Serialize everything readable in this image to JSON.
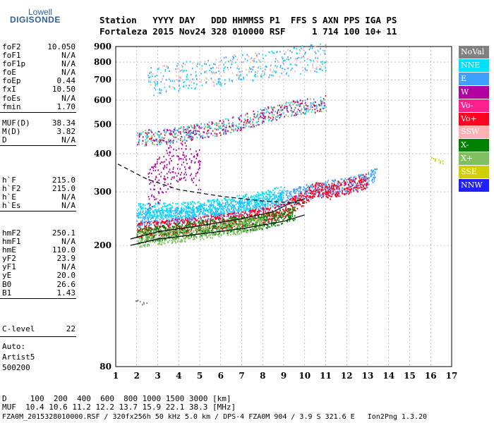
{
  "logo": {
    "line1": "Lowell",
    "line2": "DIGISONDE"
  },
  "header": {
    "labels": "Station   YYYY DAY   DDD HHMMSS P1  FFS S AXN PPS IGA PS",
    "values": "Fortaleza 2015 Nov24 328 010000 RSF     1 714 100 10+ 11"
  },
  "params_group1": [
    {
      "name": "foF2",
      "value": "10.050"
    },
    {
      "name": "foF1",
      "value": "N/A"
    },
    {
      "name": "foF1p",
      "value": "N/A"
    },
    {
      "name": "foE",
      "value": "N/A"
    },
    {
      "name": "foEp",
      "value": "0.44"
    },
    {
      "name": "fxI",
      "value": "10.50"
    },
    {
      "name": "foEs",
      "value": "N/A"
    },
    {
      "name": "fmin",
      "value": "1.70"
    }
  ],
  "params_group2": [
    {
      "name": "MUF(D)",
      "value": "38.34"
    },
    {
      "name": "M(D)",
      "value": "3.82"
    },
    {
      "name": "D",
      "value": "N/A"
    }
  ],
  "params_group3": [
    {
      "name": "h`F",
      "value": "215.0"
    },
    {
      "name": "h`F2",
      "value": "215.0"
    },
    {
      "name": "h`E",
      "value": "N/A"
    },
    {
      "name": "h`Es",
      "value": "N/A"
    }
  ],
  "params_group4": [
    {
      "name": "hmF2",
      "value": "250.1"
    },
    {
      "name": "hmF1",
      "value": "N/A"
    },
    {
      "name": "hmE",
      "value": "110.0"
    },
    {
      "name": "yF2",
      "value": "23.9"
    },
    {
      "name": "yF1",
      "value": "N/A"
    },
    {
      "name": "yE",
      "value": "20.0"
    },
    {
      "name": "B0",
      "value": "26.6"
    },
    {
      "name": "B1",
      "value": "1.43"
    }
  ],
  "clevel": {
    "name": "C-level",
    "value": "22"
  },
  "auto": {
    "line1": "Auto:",
    "line2": "Artist5",
    "line3": "500200"
  },
  "footer": {
    "d_row": "D     100  200  400  600  800 1000 1500 3000 [km]",
    "muf_row": "MUF  10.4 10.6 11.2 12.2 13.7 15.9 22.1 38.3 [MHz]",
    "file_row": "FZA0M_2015328010000.RSF / 320fx256h 50 kHz 5.0 km / DPS-4 FZA0M 904 / 3.9 S 321.6 E   Ion2Png 1.3.20"
  },
  "legend": [
    {
      "label": "NoVal",
      "color": "#808080"
    },
    {
      "label": "NNE",
      "color": "#00e0ff"
    },
    {
      "label": "E",
      "color": "#3fa0ff"
    },
    {
      "label": "W",
      "color": "#b000a0"
    },
    {
      "label": "Vo-",
      "color": "#ff2090"
    },
    {
      "label": "Vo+",
      "color": "#ff0020"
    },
    {
      "label": "SSW",
      "color": "#ffb0b0"
    },
    {
      "label": "X-",
      "color": "#008000"
    },
    {
      "label": "X+",
      "color": "#80c060"
    },
    {
      "label": "SSE",
      "color": "#d0d000"
    },
    {
      "label": "NNW",
      "color": "#2020ff"
    }
  ],
  "chart_data": {
    "type": "scatter",
    "title": "",
    "xlabel": "",
    "ylabel": "",
    "xlim": [
      1,
      17
    ],
    "ylim": [
      80,
      900
    ],
    "y_scale": "log",
    "x_ticks": [
      1,
      2,
      3,
      4,
      5,
      6,
      7,
      8,
      9,
      10,
      11,
      12,
      13,
      14,
      15,
      16,
      17
    ],
    "y_ticks": [
      80,
      200,
      300,
      400,
      500,
      600,
      700,
      800,
      900
    ],
    "grid": true,
    "legend_position": "right",
    "series": [
      {
        "name": "E",
        "color": "#3fa0ff",
        "points": [
          [
            2.0,
            245
          ],
          [
            3.0,
            248
          ],
          [
            4.0,
            252
          ],
          [
            5.0,
            257
          ],
          [
            6.0,
            262
          ],
          [
            7.0,
            268
          ],
          [
            8.0,
            275
          ],
          [
            9.0,
            285
          ],
          [
            10.0,
            300
          ],
          [
            11.0,
            310
          ],
          [
            12.0,
            315
          ],
          [
            13.0,
            330
          ],
          [
            13.4,
            350
          ]
        ]
      },
      {
        "name": "Vo+",
        "color": "#ff0020",
        "points": [
          [
            2.0,
            225
          ],
          [
            3.0,
            228
          ],
          [
            4.0,
            232
          ],
          [
            5.0,
            236
          ],
          [
            6.0,
            240
          ],
          [
            7.0,
            245
          ],
          [
            8.0,
            252
          ],
          [
            9.0,
            262
          ],
          [
            10.0,
            290
          ],
          [
            10.5,
            310
          ],
          [
            11.0,
            300
          ],
          [
            12.5,
            320
          ],
          [
            13.0,
            330
          ]
        ]
      },
      {
        "name": "NNE",
        "color": "#00e0ff",
        "points": [
          [
            2.0,
            260
          ],
          [
            4.0,
            262
          ],
          [
            6.0,
            270
          ],
          [
            8.0,
            285
          ],
          [
            9.0,
            300
          ]
        ]
      },
      {
        "name": "W",
        "color": "#b000a0",
        "points": [
          [
            2.5,
            300
          ],
          [
            3.0,
            330
          ],
          [
            3.5,
            370
          ],
          [
            4.0,
            390
          ],
          [
            4.5,
            400
          ],
          [
            5.0,
            340
          ]
        ]
      },
      {
        "name": "X-",
        "color": "#008000",
        "points": [
          [
            2.0,
            215
          ],
          [
            4.0,
            225
          ],
          [
            6.0,
            232
          ],
          [
            8.0,
            240
          ],
          [
            9.5,
            255
          ]
        ]
      },
      {
        "name": "X+",
        "color": "#80c060",
        "points": [
          [
            2.0,
            210
          ],
          [
            5.0,
            222
          ],
          [
            8.0,
            238
          ]
        ]
      },
      {
        "name": "SSE",
        "color": "#d0d000",
        "points": [
          [
            16.0,
            385
          ],
          [
            16.3,
            380
          ],
          [
            16.6,
            375
          ]
        ]
      },
      {
        "name": "NoVal",
        "color": "#808080",
        "points": [
          [
            1.9,
            131
          ],
          [
            2.2,
            130
          ],
          [
            2.5,
            130
          ]
        ]
      }
    ],
    "second_order": [
      [
        2.0,
        450
      ],
      [
        4.0,
        465
      ],
      [
        6.0,
        490
      ],
      [
        7.0,
        510
      ],
      [
        9.0,
        560
      ],
      [
        11.0,
        590
      ]
    ],
    "third_order": [
      [
        2.5,
        690
      ],
      [
        4.0,
        720
      ],
      [
        6.0,
        750
      ],
      [
        7.0,
        770
      ],
      [
        9.0,
        800
      ],
      [
        11.0,
        840
      ]
    ],
    "profile_lines": [
      {
        "name": "profile",
        "points": [
          [
            1.7,
            200
          ],
          [
            3.0,
            210
          ],
          [
            5.0,
            218
          ],
          [
            7.0,
            227
          ],
          [
            9.0,
            240
          ],
          [
            10.0,
            252
          ]
        ]
      },
      {
        "name": "trace",
        "points": [
          [
            1.7,
            210
          ],
          [
            3.0,
            222
          ],
          [
            5.0,
            232
          ],
          [
            7.0,
            245
          ],
          [
            8.5,
            258
          ],
          [
            9.3,
            275
          ],
          [
            10.0,
            285
          ]
        ]
      },
      {
        "name": "dashed",
        "points": [
          [
            1.1,
            370
          ],
          [
            2.5,
            330
          ],
          [
            4.0,
            305
          ],
          [
            6.0,
            290
          ],
          [
            8.0,
            280
          ],
          [
            10.0,
            275
          ]
        ]
      }
    ]
  }
}
